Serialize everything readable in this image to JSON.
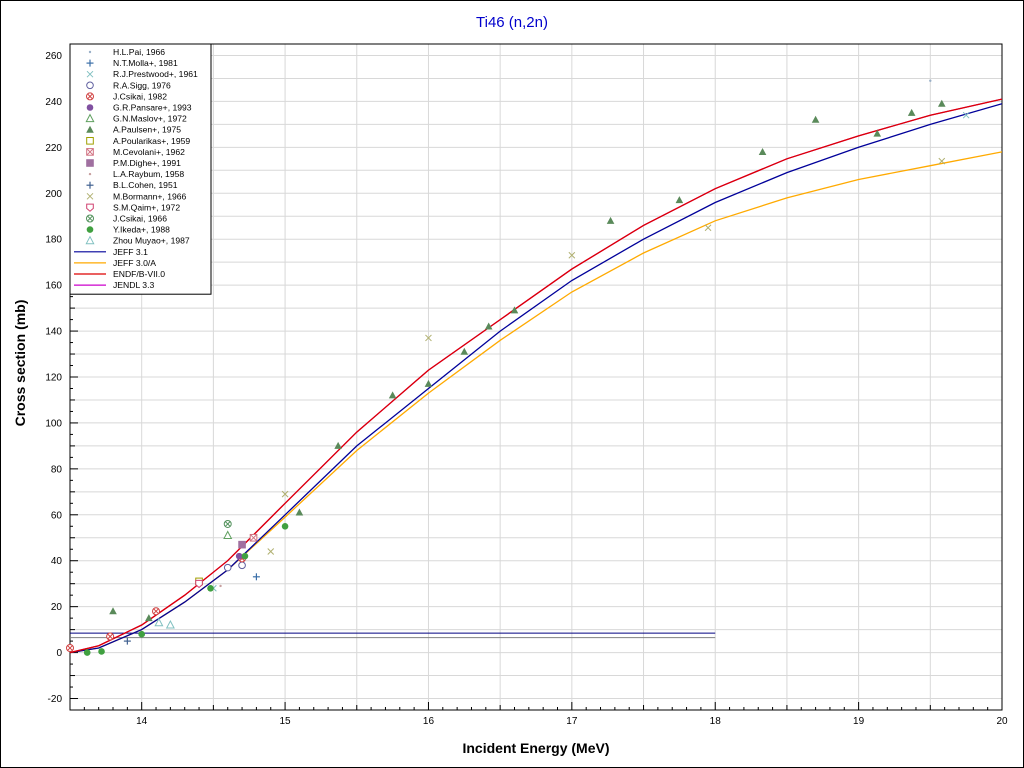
{
  "chart_data": {
    "type": "scatter",
    "title": "Ti46 (n,2n)",
    "xlabel": "Incident Energy (MeV)",
    "ylabel": "Cross section (mb)",
    "xlim": [
      13.5,
      20
    ],
    "ylim": [
      -25,
      265
    ],
    "xticks": [
      14,
      15,
      16,
      17,
      18,
      19,
      20
    ],
    "yticks": [
      -20,
      0,
      20,
      40,
      60,
      80,
      100,
      120,
      140,
      160,
      180,
      200,
      220,
      240,
      260
    ],
    "grid": true,
    "legend_position": "top-left",
    "series": [
      {
        "name": "H.L.Pai, 1966",
        "kind": "point",
        "marker": "dot",
        "color": "#9ab0c8",
        "points": [
          [
            19.5,
            249
          ]
        ]
      },
      {
        "name": "N.T.Molla+, 1981",
        "kind": "point",
        "marker": "plus",
        "color": "#3b6fa8",
        "points": [
          [
            14.8,
            33
          ]
        ]
      },
      {
        "name": "R.J.Prestwood+, 1961",
        "kind": "point",
        "marker": "x",
        "color": "#7fbfc0",
        "points": [
          [
            14.5,
            28
          ],
          [
            19.75,
            234
          ]
        ]
      },
      {
        "name": "R.A.Sigg, 1976",
        "kind": "point",
        "marker": "opendot",
        "color": "#6060a0",
        "points": [
          [
            14.6,
            37
          ],
          [
            14.7,
            38
          ]
        ]
      },
      {
        "name": "J.Csikai, 1982",
        "kind": "point",
        "marker": "circx",
        "color": "#d04040",
        "points": [
          [
            13.5,
            2
          ],
          [
            13.78,
            7
          ],
          [
            14.1,
            18
          ],
          [
            14.7,
            41
          ]
        ]
      },
      {
        "name": "G.R.Pansare+, 1993",
        "kind": "point",
        "marker": "fdot",
        "color": "#8050a0",
        "points": [
          [
            14.68,
            42
          ]
        ]
      },
      {
        "name": "G.N.Maslov+, 1972",
        "kind": "point",
        "marker": "otri",
        "color": "#60a060",
        "points": [
          [
            14.6,
            51
          ]
        ]
      },
      {
        "name": "A.Paulsen+, 1975",
        "kind": "point",
        "marker": "ftri",
        "color": "#5a8a5a",
        "points": [
          [
            13.8,
            18
          ],
          [
            14.05,
            15
          ],
          [
            15.1,
            61
          ],
          [
            15.37,
            90
          ],
          [
            15.75,
            112
          ],
          [
            16.0,
            117
          ],
          [
            16.25,
            131
          ],
          [
            16.42,
            142
          ],
          [
            16.6,
            149
          ],
          [
            17.27,
            188
          ],
          [
            17.75,
            197
          ],
          [
            18.33,
            218
          ],
          [
            18.7,
            232
          ],
          [
            19.13,
            226
          ],
          [
            19.37,
            235
          ],
          [
            19.58,
            239
          ]
        ]
      },
      {
        "name": "A.Poularikas+, 1959",
        "kind": "point",
        "marker": "osq",
        "color": "#a0a000",
        "points": [
          [
            14.4,
            31
          ]
        ]
      },
      {
        "name": "M.Cevolani+, 1962",
        "kind": "point",
        "marker": "sqx",
        "color": "#d07080",
        "points": [
          [
            14.78,
            50
          ]
        ]
      },
      {
        "name": "P.M.Dighe+, 1991",
        "kind": "point",
        "marker": "fsq",
        "color": "#a070a0",
        "points": [
          [
            14.7,
            47
          ]
        ]
      },
      {
        "name": "L.A.Raybum, 1958",
        "kind": "point",
        "marker": "dot",
        "color": "#c8a0a0",
        "points": [
          [
            14.55,
            29
          ]
        ]
      },
      {
        "name": "B.L.Cohen, 1951",
        "kind": "point",
        "marker": "plus",
        "color": "#406090",
        "points": [
          [
            13.9,
            5
          ]
        ]
      },
      {
        "name": "M.Bormann+, 1966",
        "kind": "point",
        "marker": "x",
        "color": "#b0b070",
        "points": [
          [
            14.9,
            44
          ],
          [
            15.0,
            69
          ],
          [
            16.0,
            137
          ],
          [
            17.0,
            173
          ],
          [
            17.95,
            185
          ],
          [
            19.58,
            214
          ]
        ]
      },
      {
        "name": "S.M.Qaim+, 1972",
        "kind": "point",
        "marker": "opent",
        "color": "#d04070",
        "points": [
          [
            14.4,
            30
          ]
        ]
      },
      {
        "name": "J.Csikai, 1966",
        "kind": "point",
        "marker": "ocx",
        "color": "#50905a",
        "points": [
          [
            14.6,
            56
          ]
        ]
      },
      {
        "name": "Y.Ikeda+, 1988",
        "kind": "point",
        "marker": "fcirc",
        "color": "#40a040",
        "points": [
          [
            13.62,
            0
          ],
          [
            13.72,
            0.5
          ],
          [
            14.0,
            8
          ],
          [
            14.48,
            28
          ],
          [
            14.72,
            42
          ],
          [
            15.0,
            55
          ]
        ]
      },
      {
        "name": "Zhou Muyao+, 1987",
        "kind": "point",
        "marker": "otri",
        "color": "#80c0c0",
        "points": [
          [
            14.12,
            13
          ],
          [
            14.2,
            12
          ]
        ]
      },
      {
        "name": "JEFF 3.1",
        "kind": "line",
        "color": "#00009a",
        "points": [
          [
            13.5,
            0
          ],
          [
            13.7,
            2
          ],
          [
            14.0,
            10
          ],
          [
            14.3,
            22
          ],
          [
            14.6,
            36
          ],
          [
            15.0,
            60
          ],
          [
            15.5,
            90
          ],
          [
            16.0,
            115
          ],
          [
            16.5,
            140
          ],
          [
            17.0,
            162
          ],
          [
            17.5,
            180
          ],
          [
            18.0,
            196
          ],
          [
            18.5,
            209
          ],
          [
            19.0,
            220
          ],
          [
            19.5,
            230
          ],
          [
            20.0,
            239
          ]
        ]
      },
      {
        "name": "JEFF 3.0/A",
        "kind": "line",
        "color": "#ffaa00",
        "points": [
          [
            13.5,
            0
          ],
          [
            13.7,
            2
          ],
          [
            14.0,
            10
          ],
          [
            14.3,
            22
          ],
          [
            14.6,
            36
          ],
          [
            15.0,
            59
          ],
          [
            15.5,
            88
          ],
          [
            16.0,
            113
          ],
          [
            16.5,
            136
          ],
          [
            17.0,
            157
          ],
          [
            17.5,
            174
          ],
          [
            18.0,
            188
          ],
          [
            18.5,
            198
          ],
          [
            19.0,
            206
          ],
          [
            19.5,
            212
          ],
          [
            20.0,
            218
          ]
        ]
      },
      {
        "name": "ENDF/B-VII.0",
        "kind": "line",
        "color": "#dd0000",
        "points": [
          [
            13.5,
            0
          ],
          [
            13.7,
            3
          ],
          [
            14.0,
            12
          ],
          [
            14.3,
            25
          ],
          [
            14.6,
            40
          ],
          [
            15.0,
            65
          ],
          [
            15.5,
            96
          ],
          [
            16.0,
            123
          ],
          [
            16.5,
            145
          ],
          [
            17.0,
            167
          ],
          [
            17.5,
            186
          ],
          [
            18.0,
            202
          ],
          [
            18.5,
            215
          ],
          [
            19.0,
            225
          ],
          [
            19.5,
            234
          ],
          [
            20.0,
            241
          ]
        ]
      },
      {
        "name": "JENDL 3.3",
        "kind": "line",
        "color": "#cc00cc",
        "points": [
          [
            13.5,
            0
          ],
          [
            13.7,
            3
          ],
          [
            14.0,
            12
          ],
          [
            14.3,
            25
          ],
          [
            14.6,
            40
          ],
          [
            15.0,
            65
          ],
          [
            15.5,
            96
          ],
          [
            16.0,
            123
          ],
          [
            16.5,
            145
          ],
          [
            17.0,
            167
          ],
          [
            17.5,
            186
          ],
          [
            18.0,
            202
          ],
          [
            18.5,
            215
          ],
          [
            19.0,
            225
          ],
          [
            19.5,
            234
          ],
          [
            20.0,
            241
          ]
        ]
      }
    ],
    "flat_lines": [
      {
        "color": "#000080",
        "x": [
          13.5,
          18.0
        ],
        "y": 8.5
      },
      {
        "color": "#808080",
        "x": [
          13.5,
          18.0
        ],
        "y": 6.5
      }
    ]
  }
}
